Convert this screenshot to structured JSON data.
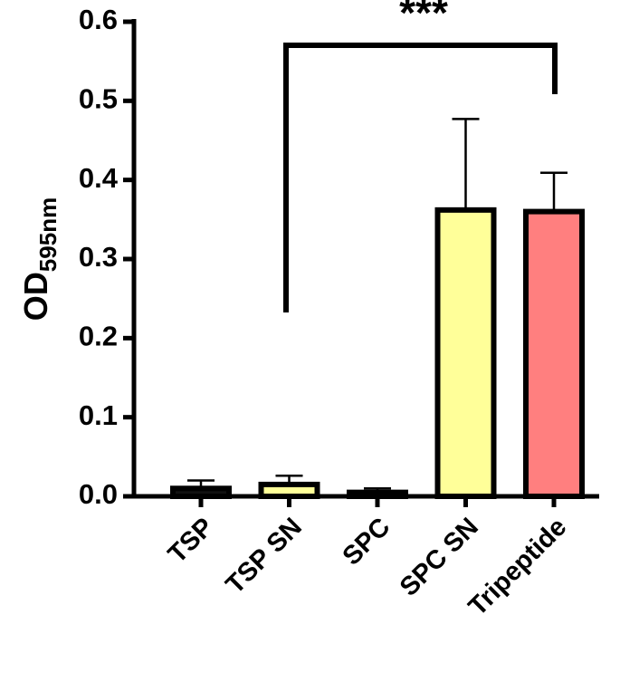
{
  "chart_data": {
    "type": "bar",
    "y_label": "OD",
    "y_label_sub": "595nm",
    "categories": [
      "TSP",
      "TSP SN",
      "SPC",
      "SPC SN",
      "Tripeptide"
    ],
    "values": [
      0.01,
      0.015,
      0.005,
      0.362,
      0.36
    ],
    "errors": [
      0.01,
      0.011,
      0.005,
      0.115,
      0.049
    ],
    "colors": [
      "#111111",
      "#ffff99",
      "#111111",
      "#ffff99",
      "#ff7f7f"
    ],
    "ylim": [
      0,
      0.6
    ],
    "yticks": [
      {
        "value": 0,
        "label": "0.0"
      },
      0.1,
      0.2,
      0.3,
      0.4,
      0.5,
      0.6
    ],
    "annotation": "***"
  }
}
